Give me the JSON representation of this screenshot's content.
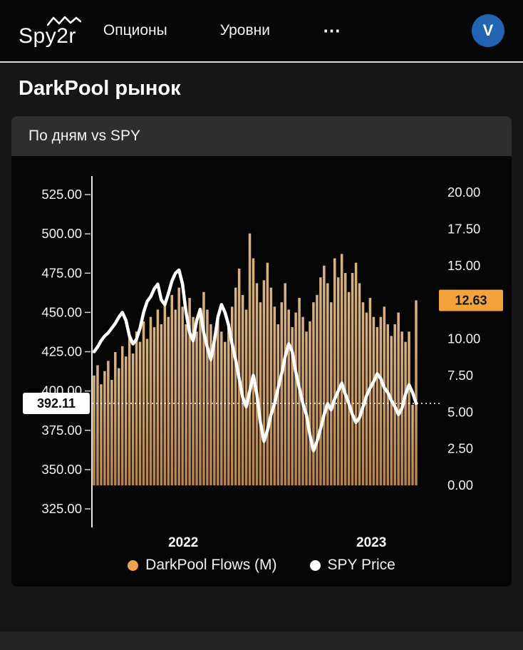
{
  "navbar": {
    "logo": "Spy2r",
    "items": [
      {
        "id": "options",
        "label": "Опционы"
      },
      {
        "id": "levels",
        "label": "Уровни"
      },
      {
        "id": "more",
        "label": "⋯"
      }
    ],
    "avatar": "V",
    "avatar_color": "#2264b1"
  },
  "page": {
    "title": "DarkPool рынок"
  },
  "chart_data": {
    "type": "mixed",
    "title": "По дням vs SPY",
    "x_ticks": [
      {
        "label": "2022",
        "position": 0.277
      },
      {
        "label": "2023",
        "position": 0.861
      }
    ],
    "left_axis": {
      "min": 325,
      "max": 525,
      "step": 25,
      "badge": "392.11"
    },
    "right_axis": {
      "min": 0,
      "max": 20,
      "step": 2.5,
      "hidden_tick": 12.5,
      "badge": "12.63",
      "badge_color": "#f2a33c"
    },
    "series": [
      {
        "name": "DarkPool Flows (M)",
        "type": "bar",
        "axis": "right",
        "color": "#c9995c",
        "color_top": "#d9b383",
        "color_bottom": "#b5824a",
        "values": [
          7.5,
          8.2,
          6.9,
          7.8,
          8.5,
          7.2,
          9.1,
          8.0,
          9.5,
          8.8,
          10.2,
          9.0,
          10.5,
          9.8,
          11.2,
          10.0,
          11.5,
          10.8,
          12.0,
          11.0,
          12.5,
          11.5,
          13.0,
          12.0,
          13.5,
          12.2,
          11.0,
          12.8,
          11.5,
          10.5,
          12.0,
          13.2,
          12.0,
          11.0,
          10.2,
          11.5,
          10.5,
          9.8,
          11.0,
          12.2,
          13.5,
          14.8,
          13.0,
          12.0,
          17.2,
          15.5,
          13.8,
          12.5,
          14.0,
          15.2,
          13.5,
          12.2,
          11.0,
          12.5,
          13.8,
          12.0,
          10.8,
          11.8,
          12.8,
          11.5,
          10.5,
          11.2,
          12.5,
          13.0,
          14.2,
          15.0,
          13.8,
          12.5,
          15.5,
          14.2,
          15.8,
          14.5,
          13.2,
          14.5,
          15.2,
          13.8,
          12.5,
          11.8,
          12.8,
          11.5,
          10.8,
          11.5,
          12.2,
          11.0,
          10.2,
          11.0,
          11.8,
          10.5,
          9.8,
          10.5,
          5.5,
          12.63
        ]
      },
      {
        "name": "SPY Price",
        "type": "line",
        "axis": "left",
        "color": "#ffffff",
        "values": [
          425,
          428,
          432,
          435,
          437,
          440,
          443,
          447,
          450,
          445,
          435,
          430,
          433,
          440,
          450,
          457,
          460,
          465,
          468,
          458,
          455,
          462,
          470,
          475,
          477,
          468,
          450,
          437,
          432,
          445,
          452,
          437,
          428,
          420,
          432,
          447,
          455,
          450,
          442,
          430,
          420,
          408,
          396,
          390,
          400,
          410,
          398,
          380,
          368,
          375,
          385,
          392,
          402,
          411,
          422,
          430,
          425,
          412,
          402,
          392,
          385,
          372,
          362,
          368,
          376,
          385,
          392,
          388,
          395,
          400,
          405,
          398,
          392,
          385,
          380,
          383,
          390,
          397,
          402,
          406,
          411,
          408,
          402,
          399,
          394,
          390,
          385,
          389,
          398,
          404,
          399,
          392.11
        ]
      }
    ],
    "legend": [
      {
        "label": "DarkPool Flows (M)",
        "color": "#f0a24b"
      },
      {
        "label": "SPY Price",
        "color": "#ffffff"
      }
    ]
  }
}
